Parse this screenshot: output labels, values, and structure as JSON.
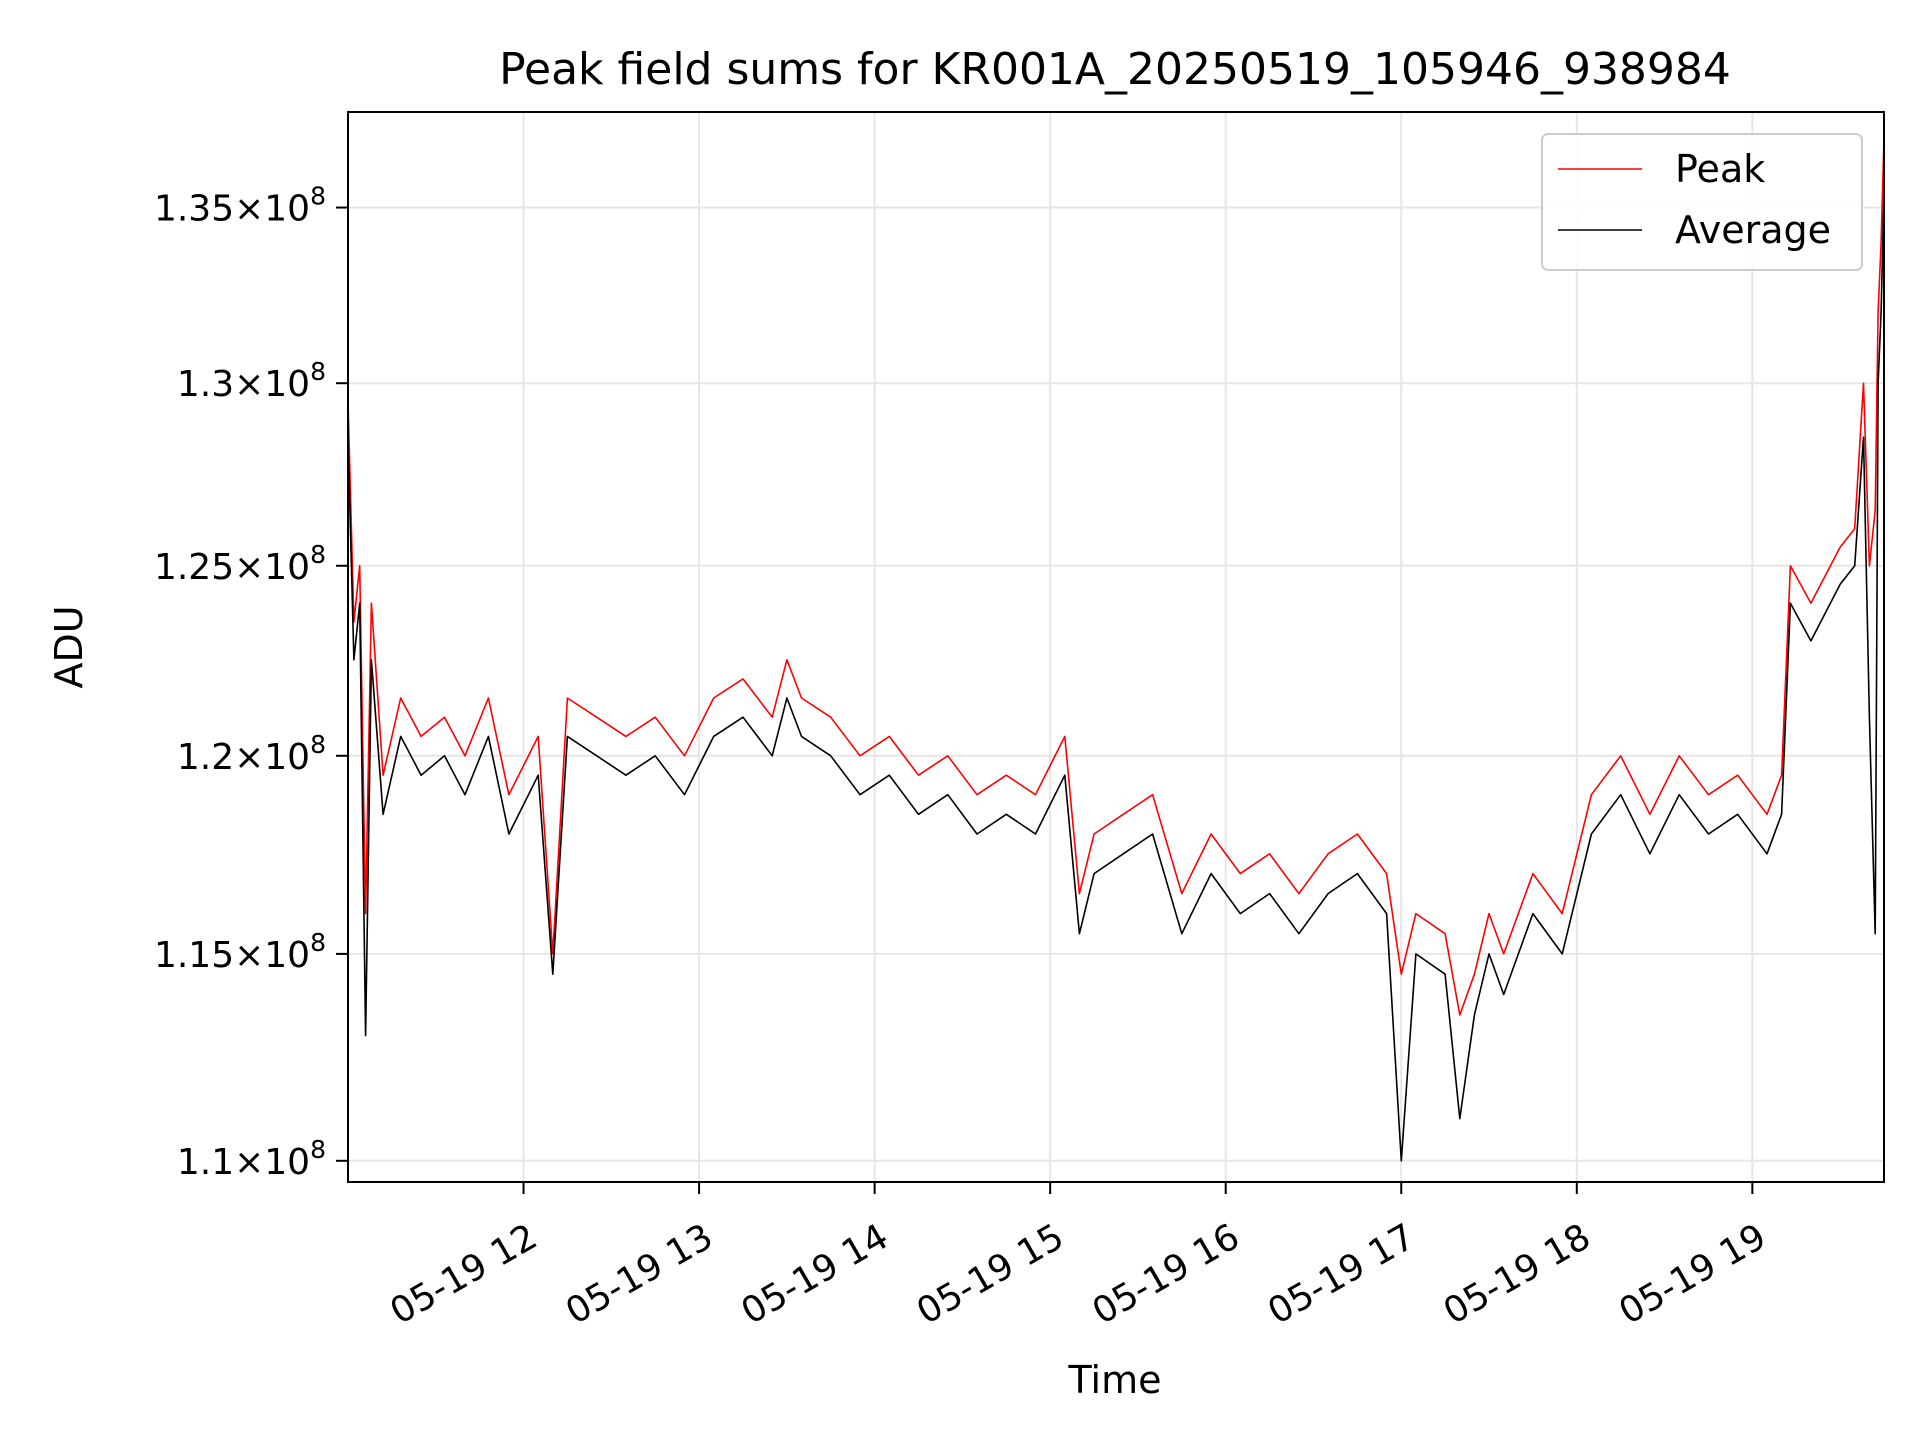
{
  "chart_data": {
    "type": "line",
    "title": "Peak field sums for KR001A_20250519_105946_938984",
    "xlabel": "Time",
    "ylabel": "ADU",
    "y_scale": "log",
    "ylim": [
      109500000,
      137800000
    ],
    "xlim": [
      "2025-05-19 11:00",
      "2025-05-19 19:45"
    ],
    "grid": true,
    "legend_position": "top-right",
    "colors": {
      "Peak": "#ff0000",
      "Average": "#000000"
    },
    "x_ticks": [
      {
        "value": "2025-05-19 12:00",
        "label": "05-19 12"
      },
      {
        "value": "2025-05-19 13:00",
        "label": "05-19 13"
      },
      {
        "value": "2025-05-19 14:00",
        "label": "05-19 14"
      },
      {
        "value": "2025-05-19 15:00",
        "label": "05-19 15"
      },
      {
        "value": "2025-05-19 16:00",
        "label": "05-19 16"
      },
      {
        "value": "2025-05-19 17:00",
        "label": "05-19 17"
      },
      {
        "value": "2025-05-19 18:00",
        "label": "05-19 18"
      },
      {
        "value": "2025-05-19 19:00",
        "label": "05-19 19"
      }
    ],
    "y_ticks": [
      {
        "value": 110000000,
        "mantissa": "1.1",
        "exponent": "8"
      },
      {
        "value": 115000000,
        "mantissa": "1.15",
        "exponent": "8"
      },
      {
        "value": 120000000,
        "mantissa": "1.2",
        "exponent": "8"
      },
      {
        "value": 125000000,
        "mantissa": "1.25",
        "exponent": "8"
      },
      {
        "value": 130000000,
        "mantissa": "1.3",
        "exponent": "8"
      },
      {
        "value": 135000000,
        "mantissa": "1.35",
        "exponent": "8"
      }
    ],
    "series": [
      {
        "name": "Peak",
        "x": [
          "2025-05-19 11:00",
          "2025-05-19 11:02",
          "2025-05-19 11:04",
          "2025-05-19 11:06",
          "2025-05-19 11:08",
          "2025-05-19 11:12",
          "2025-05-19 11:18",
          "2025-05-19 11:25",
          "2025-05-19 11:33",
          "2025-05-19 11:40",
          "2025-05-19 11:48",
          "2025-05-19 11:55",
          "2025-05-19 12:05",
          "2025-05-19 12:10",
          "2025-05-19 12:15",
          "2025-05-19 12:25",
          "2025-05-19 12:35",
          "2025-05-19 12:45",
          "2025-05-19 12:55",
          "2025-05-19 13:05",
          "2025-05-19 13:15",
          "2025-05-19 13:25",
          "2025-05-19 13:30",
          "2025-05-19 13:35",
          "2025-05-19 13:45",
          "2025-05-19 13:55",
          "2025-05-19 14:05",
          "2025-05-19 14:15",
          "2025-05-19 14:25",
          "2025-05-19 14:35",
          "2025-05-19 14:45",
          "2025-05-19 14:55",
          "2025-05-19 15:05",
          "2025-05-19 15:10",
          "2025-05-19 15:15",
          "2025-05-19 15:25",
          "2025-05-19 15:35",
          "2025-05-19 15:45",
          "2025-05-19 15:55",
          "2025-05-19 16:05",
          "2025-05-19 16:15",
          "2025-05-19 16:25",
          "2025-05-19 16:35",
          "2025-05-19 16:45",
          "2025-05-19 16:55",
          "2025-05-19 17:00",
          "2025-05-19 17:05",
          "2025-05-19 17:15",
          "2025-05-19 17:20",
          "2025-05-19 17:25",
          "2025-05-19 17:30",
          "2025-05-19 17:35",
          "2025-05-19 17:45",
          "2025-05-19 17:55",
          "2025-05-19 18:05",
          "2025-05-19 18:15",
          "2025-05-19 18:25",
          "2025-05-19 18:35",
          "2025-05-19 18:45",
          "2025-05-19 18:55",
          "2025-05-19 19:05",
          "2025-05-19 19:10",
          "2025-05-19 19:13",
          "2025-05-19 19:20",
          "2025-05-19 19:30",
          "2025-05-19 19:35",
          "2025-05-19 19:38",
          "2025-05-19 19:40",
          "2025-05-19 19:42",
          "2025-05-19 19:43",
          "2025-05-19 19:44",
          "2025-05-19 19:45"
        ],
        "values": [
          129500000,
          123500000,
          125000000,
          116000000,
          124000000,
          119500000,
          121500000,
          120500000,
          121000000,
          120000000,
          121500000,
          119000000,
          120500000,
          115000000,
          121500000,
          121000000,
          120500000,
          121000000,
          120000000,
          121500000,
          122000000,
          121000000,
          122500000,
          121500000,
          121000000,
          120000000,
          120500000,
          119500000,
          120000000,
          119000000,
          119500000,
          119000000,
          120500000,
          116500000,
          118000000,
          118500000,
          119000000,
          116500000,
          118000000,
          117000000,
          117500000,
          116500000,
          117500000,
          118000000,
          117000000,
          114500000,
          116000000,
          115500000,
          113500000,
          114500000,
          116000000,
          115000000,
          117000000,
          116000000,
          119000000,
          120000000,
          118500000,
          120000000,
          119000000,
          119500000,
          118500000,
          119500000,
          125000000,
          124000000,
          125500000,
          126000000,
          130000000,
          125000000,
          126500000,
          132000000,
          134000000,
          137000000
        ]
      },
      {
        "name": "Average",
        "x": [
          "2025-05-19 11:00",
          "2025-05-19 11:02",
          "2025-05-19 11:04",
          "2025-05-19 11:06",
          "2025-05-19 11:08",
          "2025-05-19 11:12",
          "2025-05-19 11:18",
          "2025-05-19 11:25",
          "2025-05-19 11:33",
          "2025-05-19 11:40",
          "2025-05-19 11:48",
          "2025-05-19 11:55",
          "2025-05-19 12:05",
          "2025-05-19 12:10",
          "2025-05-19 12:15",
          "2025-05-19 12:25",
          "2025-05-19 12:35",
          "2025-05-19 12:45",
          "2025-05-19 12:55",
          "2025-05-19 13:05",
          "2025-05-19 13:15",
          "2025-05-19 13:25",
          "2025-05-19 13:30",
          "2025-05-19 13:35",
          "2025-05-19 13:45",
          "2025-05-19 13:55",
          "2025-05-19 14:05",
          "2025-05-19 14:15",
          "2025-05-19 14:25",
          "2025-05-19 14:35",
          "2025-05-19 14:45",
          "2025-05-19 14:55",
          "2025-05-19 15:05",
          "2025-05-19 15:10",
          "2025-05-19 15:15",
          "2025-05-19 15:25",
          "2025-05-19 15:35",
          "2025-05-19 15:45",
          "2025-05-19 15:55",
          "2025-05-19 16:05",
          "2025-05-19 16:15",
          "2025-05-19 16:25",
          "2025-05-19 16:35",
          "2025-05-19 16:45",
          "2025-05-19 16:55",
          "2025-05-19 17:00",
          "2025-05-19 17:05",
          "2025-05-19 17:15",
          "2025-05-19 17:20",
          "2025-05-19 17:25",
          "2025-05-19 17:30",
          "2025-05-19 17:35",
          "2025-05-19 17:45",
          "2025-05-19 17:55",
          "2025-05-19 18:05",
          "2025-05-19 18:15",
          "2025-05-19 18:25",
          "2025-05-19 18:35",
          "2025-05-19 18:45",
          "2025-05-19 18:55",
          "2025-05-19 19:05",
          "2025-05-19 19:10",
          "2025-05-19 19:13",
          "2025-05-19 19:20",
          "2025-05-19 19:30",
          "2025-05-19 19:35",
          "2025-05-19 19:38",
          "2025-05-19 19:40",
          "2025-05-19 19:42",
          "2025-05-19 19:43",
          "2025-05-19 19:44",
          "2025-05-19 19:45"
        ],
        "values": [
          128500000,
          122500000,
          124000000,
          113000000,
          122500000,
          118500000,
          120500000,
          119500000,
          120000000,
          119000000,
          120500000,
          118000000,
          119500000,
          114500000,
          120500000,
          120000000,
          119500000,
          120000000,
          119000000,
          120500000,
          121000000,
          120000000,
          121500000,
          120500000,
          120000000,
          119000000,
          119500000,
          118500000,
          119000000,
          118000000,
          118500000,
          118000000,
          119500000,
          115500000,
          117000000,
          117500000,
          118000000,
          115500000,
          117000000,
          116000000,
          116500000,
          115500000,
          116500000,
          117000000,
          116000000,
          110000000,
          115000000,
          114500000,
          111000000,
          113500000,
          115000000,
          114000000,
          116000000,
          115000000,
          118000000,
          119000000,
          117500000,
          119000000,
          118000000,
          118500000,
          117500000,
          118500000,
          124000000,
          123000000,
          124500000,
          125000000,
          128500000,
          121000000,
          115500000,
          130000000,
          132000000,
          135500000
        ]
      }
    ]
  }
}
